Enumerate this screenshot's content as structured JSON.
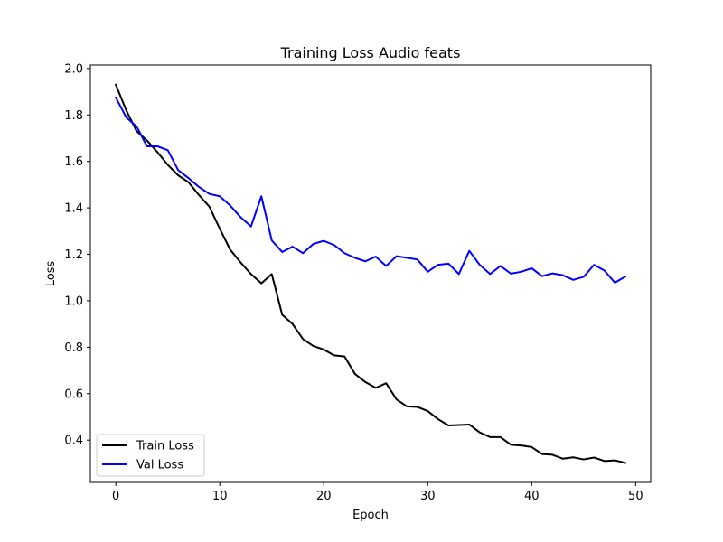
{
  "chart_data": {
    "type": "line",
    "title": "Training Loss Audio feats",
    "xlabel": "Epoch",
    "ylabel": "Loss",
    "xlim": [
      -2.45,
      51.45
    ],
    "ylim": [
      0.218,
      2.015
    ],
    "xticks": [
      0,
      10,
      20,
      30,
      40,
      50
    ],
    "yticks": [
      0.4,
      0.6,
      0.8,
      1.0,
      1.2,
      1.4,
      1.6,
      1.8,
      2.0
    ],
    "xtick_labels": [
      "0",
      "10",
      "20",
      "30",
      "40",
      "50"
    ],
    "ytick_labels": [
      "0.4",
      "0.6",
      "0.8",
      "1.0",
      "1.2",
      "1.4",
      "1.6",
      "1.8",
      "2.0"
    ],
    "grid": false,
    "legend_position": "lower-left",
    "x": [
      0,
      1,
      2,
      3,
      4,
      5,
      6,
      7,
      8,
      9,
      10,
      11,
      12,
      13,
      14,
      15,
      16,
      17,
      18,
      19,
      20,
      21,
      22,
      23,
      24,
      25,
      26,
      27,
      28,
      29,
      30,
      31,
      32,
      33,
      34,
      35,
      36,
      37,
      38,
      39,
      40,
      41,
      42,
      43,
      44,
      45,
      46,
      47,
      48,
      49
    ],
    "series": [
      {
        "name": "Train Loss",
        "color": "#000000",
        "values": [
          1.93,
          1.82,
          1.73,
          1.69,
          1.64,
          1.585,
          1.54,
          1.51,
          1.455,
          1.405,
          1.31,
          1.22,
          1.165,
          1.115,
          1.075,
          1.115,
          0.94,
          0.9,
          0.835,
          0.805,
          0.79,
          0.765,
          0.76,
          0.685,
          0.65,
          0.625,
          0.645,
          0.575,
          0.545,
          0.543,
          0.525,
          0.49,
          0.463,
          0.465,
          0.467,
          0.433,
          0.413,
          0.413,
          0.38,
          0.377,
          0.37,
          0.34,
          0.337,
          0.32,
          0.326,
          0.317,
          0.325,
          0.31,
          0.313,
          0.302
        ]
      },
      {
        "name": "Val Loss",
        "color": "#0000ff",
        "values": [
          1.875,
          1.79,
          1.75,
          1.665,
          1.665,
          1.648,
          1.562,
          1.528,
          1.49,
          1.46,
          1.45,
          1.41,
          1.36,
          1.32,
          1.45,
          1.26,
          1.21,
          1.233,
          1.205,
          1.245,
          1.258,
          1.24,
          1.205,
          1.185,
          1.17,
          1.19,
          1.15,
          1.192,
          1.185,
          1.178,
          1.125,
          1.155,
          1.16,
          1.115,
          1.215,
          1.155,
          1.115,
          1.15,
          1.117,
          1.125,
          1.14,
          1.106,
          1.118,
          1.11,
          1.09,
          1.103,
          1.155,
          1.13,
          1.078,
          1.104
        ]
      }
    ]
  }
}
